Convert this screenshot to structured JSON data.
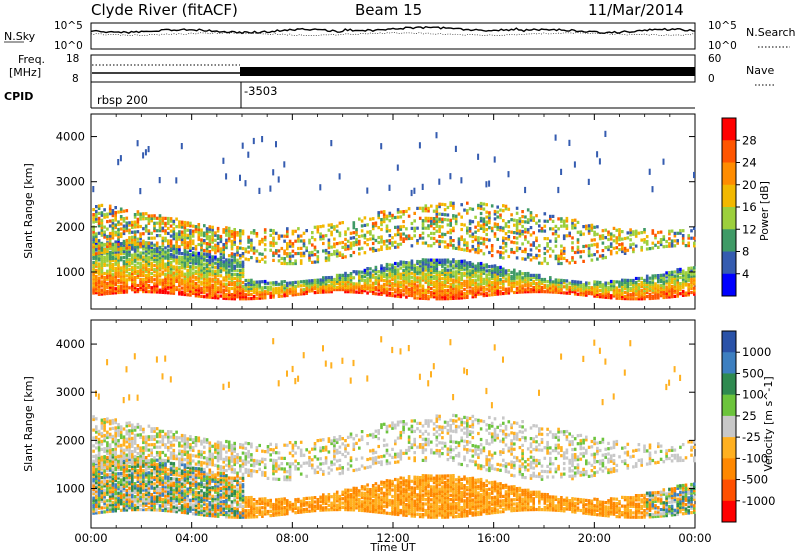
{
  "header": {
    "station": "Clyde River (fitACF)",
    "beam": "Beam 15",
    "date": "11/Mar/2014"
  },
  "strips": {
    "noise": {
      "left_label": "N.Sky",
      "right_label": "N.Search",
      "left_ticks": [
        "10^5",
        "10^0"
      ],
      "right_ticks": [
        "10^5",
        "10^0"
      ]
    },
    "freq": {
      "left_label_line1": "Freq.",
      "left_label_line2": "[MHz]",
      "right_label": "Nave",
      "left_ticks": [
        "18",
        "8"
      ],
      "right_ticks": [
        "60",
        "0"
      ]
    },
    "cpid": {
      "label": "CPID",
      "segments": [
        {
          "text": "rbsp 200",
          "start_hour": 0
        },
        {
          "text": "-3503",
          "start_hour": 6.0
        }
      ]
    }
  },
  "chart_data": [
    {
      "type": "heatmap",
      "name": "Power",
      "ylabel": "Slant Range [km]",
      "y_ticks": [
        "4000",
        "3000",
        "2000",
        "1000"
      ],
      "ylim": [
        180,
        4500
      ],
      "colorbar": {
        "label": "Power [dB]",
        "ticks": [
          "28",
          "24",
          "20",
          "16",
          "12",
          "8",
          "4"
        ],
        "colors": [
          "#ff0000",
          "#ff5500",
          "#ff8c00",
          "#f2b800",
          "#9ccf3c",
          "#3f9a66",
          "#355cb0",
          "#0000ff"
        ]
      }
    },
    {
      "type": "heatmap",
      "name": "Velocity",
      "ylabel": "Slant Range [km]",
      "y_ticks": [
        "4000",
        "3000",
        "2000",
        "1000"
      ],
      "ylim": [
        180,
        4500
      ],
      "colorbar": {
        "label": "Velocity [m s^-1]",
        "ticks": [
          "1000",
          "500",
          "100",
          "25",
          "-25",
          "-100",
          "-500",
          "-1000"
        ],
        "colors": [
          "#2a52a8",
          "#3d7fc0",
          "#2f8a50",
          "#6cc43c",
          "#c8c8c8",
          "#ffb020",
          "#ff8800",
          "#ff5000",
          "#ff0000"
        ]
      }
    }
  ],
  "time_axis": {
    "label": "Time UT",
    "ticks": [
      "00:00",
      "04:00",
      "08:00",
      "12:00",
      "16:00",
      "20:00",
      "00:00"
    ],
    "tick_hours": [
      0,
      4,
      8,
      12,
      16,
      20,
      24
    ]
  }
}
